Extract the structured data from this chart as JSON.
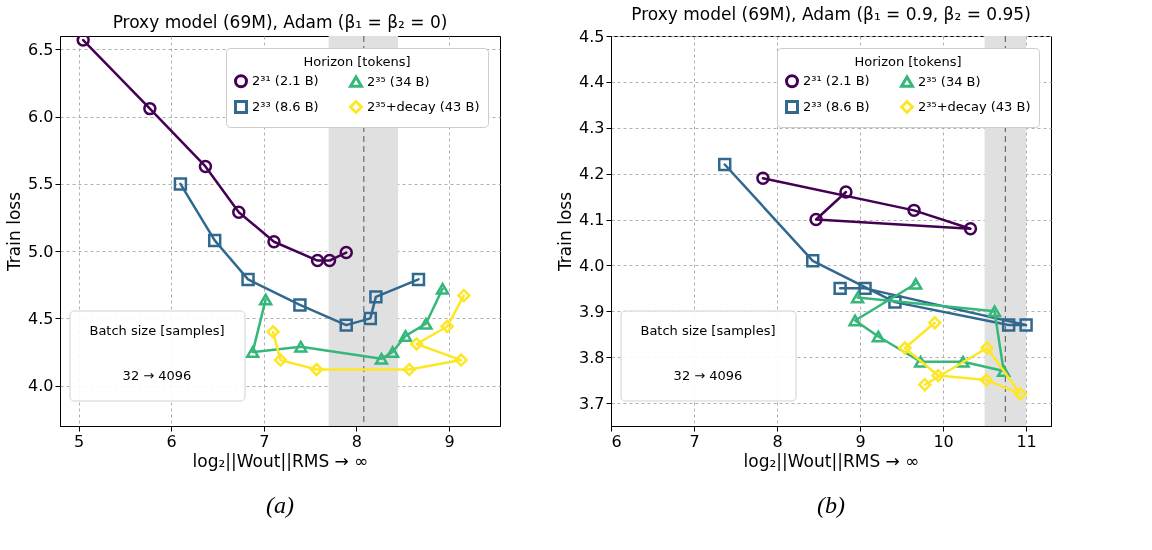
{
  "chart_data": [
    {
      "type": "line",
      "title": "Proxy model (69M), Adam (β₁ = β₂ = 0)",
      "xlabel": "log₂||Wout||RMS → ∞",
      "ylabel": "Train loss",
      "legend_title": "Horizon [tokens]",
      "legend": "top right",
      "grid": true,
      "line_style": "solid",
      "xlim": [
        4.8,
        9.55
      ],
      "xticks": [
        5,
        6,
        7,
        8,
        9
      ],
      "ylim": [
        3.7,
        6.6
      ],
      "yticks": [
        {
          "value": 4,
          "label": "4.0"
        },
        4.5,
        {
          "value": 5,
          "label": "5.0"
        },
        5.5,
        {
          "value": 6,
          "label": "6.0"
        },
        6.5
      ],
      "bands": [
        {
          "axis": "x",
          "from": 7.7,
          "to": 8.45,
          "color": "#e0e0e0"
        }
      ],
      "ref_lines": [
        {
          "axis": "x",
          "value": 8.08,
          "color": "#555555",
          "line_style": "dashed"
        }
      ],
      "annotations": [
        "Batch size [samples]",
        "32 → 4096",
        "(a)"
      ],
      "series": [
        {
          "name": "2³¹ (2.1 B)",
          "color": "#440154",
          "marker": "circle",
          "x": [
            5.05,
            5.77,
            6.37,
            6.73,
            7.11,
            7.58,
            7.71,
            7.89
          ],
          "values": [
            6.57,
            6.06,
            5.63,
            5.29,
            5.07,
            4.93,
            4.93,
            4.99
          ]
        },
        {
          "name": "2³³ (8.6 B)",
          "color": "#31688e",
          "marker": "square",
          "x": [
            6.1,
            6.47,
            6.83,
            7.39,
            7.89,
            8.15,
            8.21,
            8.67
          ],
          "values": [
            5.5,
            5.08,
            4.79,
            4.6,
            4.45,
            4.5,
            4.66,
            4.79
          ]
        },
        {
          "name": "2³⁵ (34 B)",
          "color": "#35b779",
          "marker": "triangle",
          "x": [
            7.02,
            6.88,
            7.4,
            8.27,
            8.39,
            8.53,
            8.75,
            8.93
          ],
          "values": [
            4.64,
            4.25,
            4.29,
            4.2,
            4.25,
            4.37,
            4.46,
            4.72
          ]
        },
        {
          "name": "2³⁵+decay (43 B)",
          "color": "#fde725",
          "marker": "diamond",
          "x": [
            7.1,
            7.18,
            7.57,
            8.57,
            9.13,
            8.65,
            8.98,
            9.16
          ],
          "values": [
            4.4,
            4.19,
            4.12,
            4.12,
            4.19,
            4.31,
            4.44,
            4.67
          ]
        }
      ]
    },
    {
      "type": "line",
      "title": "Proxy model (69M), Adam (β₁ = 0.9, β₂ = 0.95)",
      "xlabel": "log₂||Wout||RMS → ∞",
      "ylabel": "Train loss",
      "legend_title": "Horizon [tokens]",
      "legend": "top right",
      "grid": true,
      "line_style": "solid",
      "xlim": [
        6,
        11.3
      ],
      "xticks": [
        6,
        7,
        8,
        9,
        10,
        11
      ],
      "ylim": [
        3.65,
        4.5
      ],
      "yticks": [
        3.7,
        3.8,
        3.9,
        {
          "value": 4,
          "label": "4.0"
        },
        4.1,
        4.2,
        4.3,
        4.4,
        4.5
      ],
      "bands": [
        {
          "axis": "x",
          "from": 10.5,
          "to": 11.0,
          "color": "#e0e0e0"
        }
      ],
      "ref_lines": [
        {
          "axis": "x",
          "value": 10.75,
          "color": "#555555",
          "line_style": "dashed"
        }
      ],
      "annotations": [
        "Batch size [samples]",
        "32 → 4096",
        "(b)"
      ],
      "series": [
        {
          "name": "2³¹ (2.1 B)",
          "color": "#440154",
          "marker": "circle",
          "x": [
            7.83,
            9.65,
            10.33,
            8.47,
            8.83
          ],
          "values": [
            4.19,
            4.12,
            4.08,
            4.1,
            4.16
          ]
        },
        {
          "name": "2³³ (8.6 B)",
          "color": "#31688e",
          "marker": "square",
          "x": [
            7.37,
            8.43,
            9.42,
            10.79,
            11.0,
            9.06,
            8.76
          ],
          "values": [
            4.22,
            4.01,
            3.92,
            3.87,
            3.87,
            3.95,
            3.95
          ]
        },
        {
          "name": "2³⁵ (34 B)",
          "color": "#35b779",
          "marker": "triangle",
          "x": [
            9.67,
            8.94,
            9.22,
            9.73,
            10.24,
            10.73,
            10.62,
            8.97
          ],
          "values": [
            3.96,
            3.88,
            3.845,
            3.79,
            3.79,
            3.77,
            3.9,
            3.93
          ]
        },
        {
          "name": "2³⁵+decay (43 B)",
          "color": "#fde725",
          "marker": "diamond",
          "x": [
            9.9,
            9.54,
            9.94,
            10.52,
            10.93,
            10.53,
            9.78
          ],
          "values": [
            3.875,
            3.82,
            3.76,
            3.75,
            3.72,
            3.82,
            3.74
          ]
        }
      ]
    }
  ]
}
